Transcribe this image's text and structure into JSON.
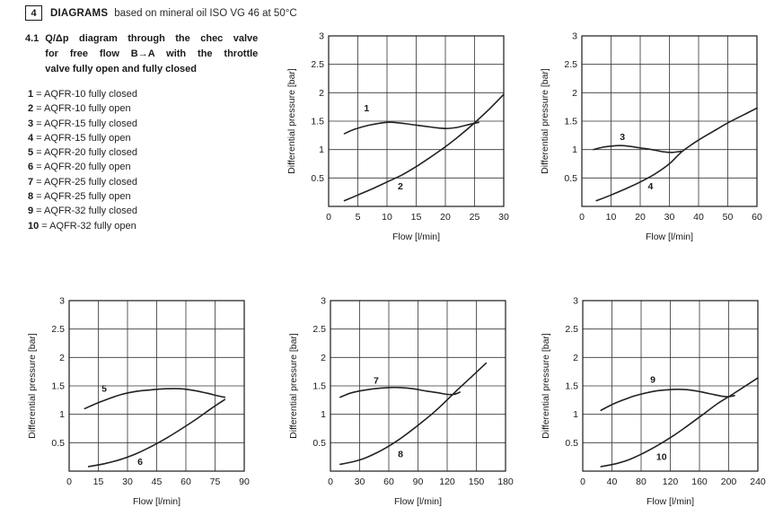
{
  "page": {
    "section_number": "4",
    "section_title": "DIAGRAMS",
    "section_subtitle": "based on mineral oil ISO VG 46 at 50°C",
    "heading_number": "4.1",
    "heading_lines": [
      "Q/Δp diagram through the chec valve",
      "for free flow B→A with the throttle",
      "valve fully open and fully closed"
    ],
    "legend": [
      {
        "num": "1",
        "label": "AQFR-10 fully closed"
      },
      {
        "num": "2",
        "label": "AQFR-10 fully open"
      },
      {
        "num": "3",
        "label": "AQFR-15 fully closed"
      },
      {
        "num": "4",
        "label": "AQFR-15 fully open"
      },
      {
        "num": "5",
        "label": "AQFR-20 fully closed"
      },
      {
        "num": "6",
        "label": "AQFR-20 fully open"
      },
      {
        "num": "7",
        "label": "AQFR-25 fully closed"
      },
      {
        "num": "8",
        "label": "AQFR-25 fully open"
      },
      {
        "num": "9",
        "label": "AQFR-32 fully closed"
      },
      {
        "num": "10",
        "label": "AQFR-32 fully open"
      }
    ]
  },
  "colors": {
    "ink": "#1a1a1a",
    "grid": "#333333",
    "curve": "#222222"
  },
  "chart_data": [
    {
      "type": "line",
      "valve": "AQFR-10",
      "xlabel": "Flow [l/min]",
      "ylabel": "Differential pressure [bar]",
      "xlim": [
        0,
        30
      ],
      "ylim": [
        0,
        3
      ],
      "grid": true,
      "xticks": [
        0,
        5,
        10,
        15,
        20,
        25,
        30
      ],
      "yticks": [
        0.5,
        1,
        1.5,
        2,
        2.5,
        3
      ],
      "series": [
        {
          "name": "1",
          "legend": "AQFR-10 fully closed",
          "label_at": [
            6.5,
            1.74
          ],
          "points": [
            [
              2.7,
              1.28
            ],
            [
              4.5,
              1.36
            ],
            [
              7,
              1.43
            ],
            [
              10,
              1.48
            ],
            [
              12,
              1.47
            ],
            [
              15,
              1.43
            ],
            [
              18,
              1.39
            ],
            [
              20,
              1.37
            ],
            [
              22,
              1.39
            ],
            [
              24,
              1.44
            ],
            [
              25.7,
              1.48
            ]
          ]
        },
        {
          "name": "2",
          "legend": "AQFR-10 fully open",
          "label_at": [
            12.3,
            0.36
          ],
          "points": [
            [
              2.7,
              0.1
            ],
            [
              5,
              0.2
            ],
            [
              7.5,
              0.31
            ],
            [
              10,
              0.43
            ],
            [
              12.5,
              0.55
            ],
            [
              15,
              0.7
            ],
            [
              17.5,
              0.87
            ],
            [
              20,
              1.05
            ],
            [
              22.5,
              1.25
            ],
            [
              25,
              1.47
            ],
            [
              27.5,
              1.71
            ],
            [
              30,
              1.97
            ]
          ]
        }
      ]
    },
    {
      "type": "line",
      "valve": "AQFR-15",
      "xlabel": "Flow [l/min]",
      "ylabel": "Differential pressure [bar]",
      "xlim": [
        0,
        60
      ],
      "ylim": [
        0,
        3
      ],
      "grid": true,
      "xticks": [
        0,
        10,
        20,
        30,
        40,
        50,
        60
      ],
      "yticks": [
        0.5,
        1,
        1.5,
        2,
        2.5,
        3
      ],
      "series": [
        {
          "name": "3",
          "legend": "AQFR-15 fully closed",
          "label_at": [
            13.9,
            1.23
          ],
          "points": [
            [
              4,
              1.0
            ],
            [
              7,
              1.04
            ],
            [
              10,
              1.06
            ],
            [
              13,
              1.07
            ],
            [
              16,
              1.06
            ],
            [
              20,
              1.03
            ],
            [
              24,
              1.0
            ],
            [
              28,
              0.96
            ],
            [
              31,
              0.95
            ],
            [
              34,
              0.97
            ]
          ]
        },
        {
          "name": "4",
          "legend": "AQFR-15 fully open",
          "label_at": [
            23.5,
            0.36
          ],
          "points": [
            [
              5,
              0.1
            ],
            [
              10,
              0.2
            ],
            [
              15,
              0.31
            ],
            [
              20,
              0.43
            ],
            [
              25,
              0.57
            ],
            [
              30,
              0.75
            ],
            [
              34,
              0.95
            ],
            [
              38,
              1.1
            ],
            [
              42,
              1.23
            ],
            [
              46,
              1.35
            ],
            [
              50,
              1.47
            ],
            [
              55,
              1.6
            ],
            [
              60,
              1.73
            ]
          ]
        }
      ]
    },
    {
      "type": "line",
      "valve": "AQFR-20",
      "xlabel": "Flow [l/min]",
      "ylabel": "Differential pressure [bar]",
      "xlim": [
        0,
        90
      ],
      "ylim": [
        0,
        3
      ],
      "grid": true,
      "xticks": [
        0,
        15,
        30,
        45,
        60,
        75,
        90
      ],
      "yticks": [
        0.5,
        1,
        1.5,
        2,
        2.5,
        3
      ],
      "series": [
        {
          "name": "5",
          "legend": "AQFR-20 fully closed",
          "label_at": [
            18,
            1.46
          ],
          "points": [
            [
              8,
              1.1
            ],
            [
              14,
              1.19
            ],
            [
              20,
              1.27
            ],
            [
              27,
              1.35
            ],
            [
              34,
              1.4
            ],
            [
              42,
              1.43
            ],
            [
              50,
              1.45
            ],
            [
              57,
              1.45
            ],
            [
              64,
              1.42
            ],
            [
              71,
              1.37
            ],
            [
              77,
              1.32
            ],
            [
              80,
              1.3
            ]
          ]
        },
        {
          "name": "6",
          "legend": "AQFR-20 fully open",
          "label_at": [
            36.5,
            0.17
          ],
          "points": [
            [
              10,
              0.08
            ],
            [
              18,
              0.13
            ],
            [
              26,
              0.2
            ],
            [
              34,
              0.3
            ],
            [
              42,
              0.43
            ],
            [
              50,
              0.58
            ],
            [
              58,
              0.75
            ],
            [
              66,
              0.93
            ],
            [
              73,
              1.1
            ],
            [
              80,
              1.26
            ]
          ]
        }
      ]
    },
    {
      "type": "line",
      "valve": "AQFR-25",
      "xlabel": "Flow [l/min]",
      "ylabel": "Differential pressure [bar]",
      "xlim": [
        0,
        180
      ],
      "ylim": [
        0,
        3
      ],
      "grid": true,
      "xticks": [
        0,
        30,
        60,
        90,
        120,
        150,
        180
      ],
      "yticks": [
        0.5,
        1,
        1.5,
        2,
        2.5,
        3
      ],
      "series": [
        {
          "name": "7",
          "legend": "AQFR-25 fully closed",
          "label_at": [
            47,
            1.6
          ],
          "points": [
            [
              10,
              1.3
            ],
            [
              20,
              1.37
            ],
            [
              30,
              1.41
            ],
            [
              45,
              1.45
            ],
            [
              60,
              1.47
            ],
            [
              72,
              1.47
            ],
            [
              85,
              1.45
            ],
            [
              98,
              1.41
            ],
            [
              110,
              1.38
            ],
            [
              120,
              1.35
            ],
            [
              127,
              1.35
            ],
            [
              133,
              1.39
            ]
          ]
        },
        {
          "name": "8",
          "legend": "AQFR-25 fully open",
          "label_at": [
            72,
            0.31
          ],
          "points": [
            [
              10,
              0.12
            ],
            [
              22,
              0.16
            ],
            [
              34,
              0.22
            ],
            [
              46,
              0.31
            ],
            [
              58,
              0.42
            ],
            [
              70,
              0.55
            ],
            [
              82,
              0.7
            ],
            [
              94,
              0.86
            ],
            [
              106,
              1.03
            ],
            [
              118,
              1.22
            ],
            [
              130,
              1.42
            ],
            [
              145,
              1.66
            ],
            [
              160,
              1.9
            ]
          ]
        }
      ]
    },
    {
      "type": "line",
      "valve": "AQFR-32",
      "xlabel": "Flow [l/min]",
      "ylabel": "Differential pressure [bar]",
      "xlim": [
        0,
        240
      ],
      "ylim": [
        0,
        3
      ],
      "grid": true,
      "xticks": [
        0,
        40,
        80,
        120,
        160,
        200,
        240
      ],
      "yticks": [
        0.5,
        1,
        1.5,
        2,
        2.5,
        3
      ],
      "series": [
        {
          "name": "9",
          "legend": "AQFR-32 fully closed",
          "label_at": [
            96,
            1.62
          ],
          "points": [
            [
              25,
              1.07
            ],
            [
              40,
              1.17
            ],
            [
              55,
              1.25
            ],
            [
              70,
              1.32
            ],
            [
              85,
              1.37
            ],
            [
              100,
              1.41
            ],
            [
              115,
              1.43
            ],
            [
              130,
              1.44
            ],
            [
              145,
              1.43
            ],
            [
              160,
              1.4
            ],
            [
              175,
              1.36
            ],
            [
              190,
              1.32
            ],
            [
              200,
              1.31
            ],
            [
              208,
              1.33
            ]
          ]
        },
        {
          "name": "10",
          "legend": "AQFR-32 fully open",
          "label_at": [
            108,
            0.26
          ],
          "points": [
            [
              25,
              0.08
            ],
            [
              45,
              0.13
            ],
            [
              65,
              0.21
            ],
            [
              85,
              0.33
            ],
            [
              105,
              0.47
            ],
            [
              125,
              0.63
            ],
            [
              145,
              0.81
            ],
            [
              165,
              1.0
            ],
            [
              185,
              1.19
            ],
            [
              205,
              1.35
            ],
            [
              222,
              1.49
            ],
            [
              240,
              1.64
            ]
          ]
        }
      ]
    }
  ]
}
